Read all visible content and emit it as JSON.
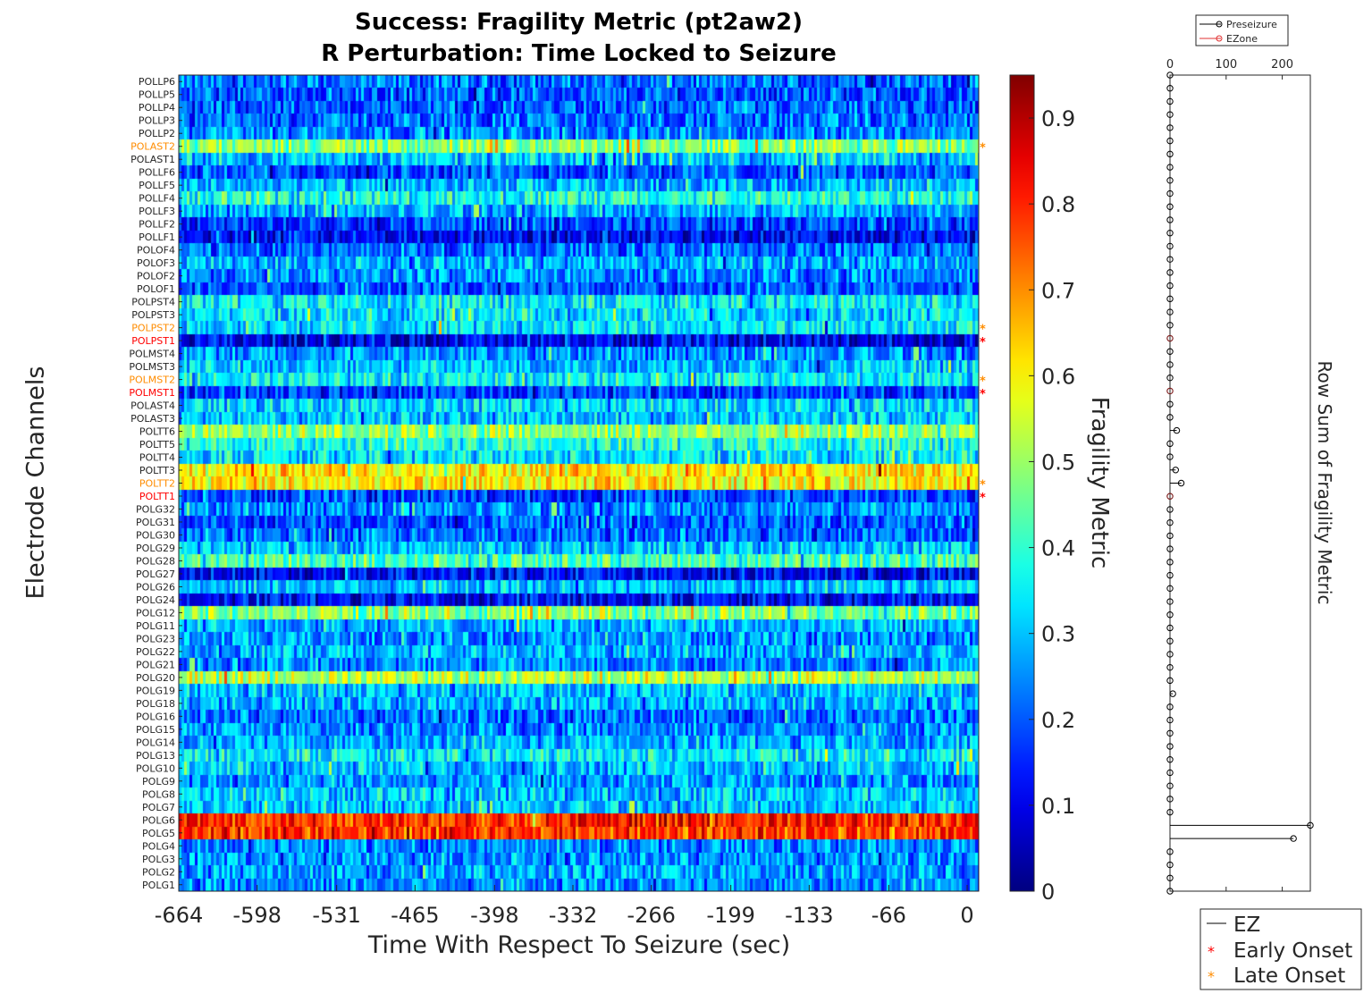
{
  "title_line1": "Success: Fragility Metric (pt2aw2)",
  "title_line2": "R Perturbation:  Time Locked to Seizure",
  "colors": {
    "ez_early": "#ff0000",
    "ez_late": "#ff8c00",
    "normal_label": "#262626",
    "preseizure": "#000000",
    "ezone": "#e03030"
  },
  "chart_data": [
    {
      "type": "heatmap",
      "title": "Success: Fragility Metric (pt2aw2) / R Perturbation:  Time Locked to Seizure",
      "xlabel": "Time With Respect To Seizure (sec)",
      "ylabel": "Electrode Channels",
      "colorbar_label": "Fragility Metric",
      "colormap": "jet",
      "clim": [
        0,
        0.95
      ],
      "colorbar_ticks": [
        "0",
        "0.1",
        "0.2",
        "0.3",
        "0.4",
        "0.5",
        "0.6",
        "0.7",
        "0.8",
        "0.9"
      ],
      "xlim": [
        -664,
        0
      ],
      "x_ticks": [
        "-664",
        "-598",
        "-531",
        "-465",
        "-398",
        "-332",
        "-266",
        "-199",
        "-133",
        "-66",
        "0"
      ],
      "channels": [
        "POLLP6",
        "POLLP5",
        "POLLP4",
        "POLLP3",
        "POLLP2",
        "POLAST2",
        "POLAST1",
        "POLLF6",
        "POLLF5",
        "POLLF4",
        "POLLF3",
        "POLLF2",
        "POLLF1",
        "POLOF4",
        "POLOF3",
        "POLOF2",
        "POLOF1",
        "POLPST4",
        "POLPST3",
        "POLPST2",
        "POLPST1",
        "POLMST4",
        "POLMST3",
        "POLMST2",
        "POLMST1",
        "POLAST4",
        "POLAST3",
        "POLTT6",
        "POLTT5",
        "POLTT4",
        "POLTT3",
        "POLTT2",
        "POLTT1",
        "POLG32",
        "POLG31",
        "POLG30",
        "POLG29",
        "POLG28",
        "POLG27",
        "POLG26",
        "POLG24",
        "POLG12",
        "POLG11",
        "POLG23",
        "POLG22",
        "POLG21",
        "POLG20",
        "POLG19",
        "POLG18",
        "POLG16",
        "POLG15",
        "POLG14",
        "POLG13",
        "POLG10",
        "POLG9",
        "POLG8",
        "POLG7",
        "POLG6",
        "POLG5",
        "POLG4",
        "POLG3",
        "POLG2",
        "POLG1"
      ],
      "row_mean_fragility": [
        0.22,
        0.2,
        0.2,
        0.22,
        0.25,
        0.48,
        0.3,
        0.2,
        0.28,
        0.38,
        0.28,
        0.18,
        0.12,
        0.22,
        0.28,
        0.25,
        0.2,
        0.35,
        0.33,
        0.33,
        0.1,
        0.25,
        0.3,
        0.35,
        0.18,
        0.32,
        0.3,
        0.5,
        0.38,
        0.33,
        0.62,
        0.6,
        0.18,
        0.25,
        0.2,
        0.22,
        0.3,
        0.42,
        0.12,
        0.3,
        0.12,
        0.48,
        0.28,
        0.25,
        0.28,
        0.25,
        0.52,
        0.3,
        0.28,
        0.22,
        0.25,
        0.28,
        0.35,
        0.3,
        0.25,
        0.3,
        0.3,
        0.8,
        0.78,
        0.25,
        0.25,
        0.27,
        0.25
      ],
      "early_onset": [
        "POLPST1",
        "POLMST1",
        "POLTT1"
      ],
      "late_onset": [
        "POLAST2",
        "POLPST2",
        "POLMST2",
        "POLTT2"
      ]
    },
    {
      "type": "line",
      "xlabel": "Row Sum of Fragility Metric",
      "xlim": [
        0,
        250
      ],
      "x_ticks": [
        "0",
        "100",
        "200"
      ],
      "series": [
        {
          "name": "Preseizure",
          "values": [
            0,
            0,
            0,
            0,
            0,
            0,
            0,
            0,
            0,
            0,
            0,
            0,
            0,
            0,
            0,
            0,
            0,
            0,
            0,
            0,
            0,
            0,
            0,
            0,
            0,
            0,
            0,
            12,
            0,
            0,
            10,
            20,
            0,
            0,
            0,
            0,
            0,
            0,
            0,
            0,
            0,
            0,
            0,
            0,
            0,
            0,
            0,
            5,
            0,
            0,
            0,
            0,
            0,
            0,
            0,
            0,
            0,
            250,
            220,
            0,
            0,
            0,
            0
          ]
        },
        {
          "name": "EZone",
          "values": [
            null,
            null,
            null,
            null,
            null,
            null,
            null,
            null,
            null,
            null,
            null,
            null,
            null,
            null,
            null,
            null,
            null,
            null,
            null,
            null,
            0,
            null,
            null,
            null,
            0,
            null,
            null,
            null,
            null,
            null,
            null,
            null,
            0,
            null,
            null,
            null,
            null,
            null,
            null,
            null,
            null,
            null,
            null,
            null,
            null,
            null,
            null,
            null,
            null,
            null,
            null,
            null,
            null,
            null,
            null,
            null,
            null,
            null,
            null,
            null,
            null,
            null,
            null
          ]
        }
      ]
    }
  ],
  "side_legend": {
    "items": [
      "Preseizure",
      "EZone"
    ]
  },
  "bottom_legend": {
    "items": [
      "EZ",
      "Early Onset",
      "Late Onset"
    ]
  }
}
